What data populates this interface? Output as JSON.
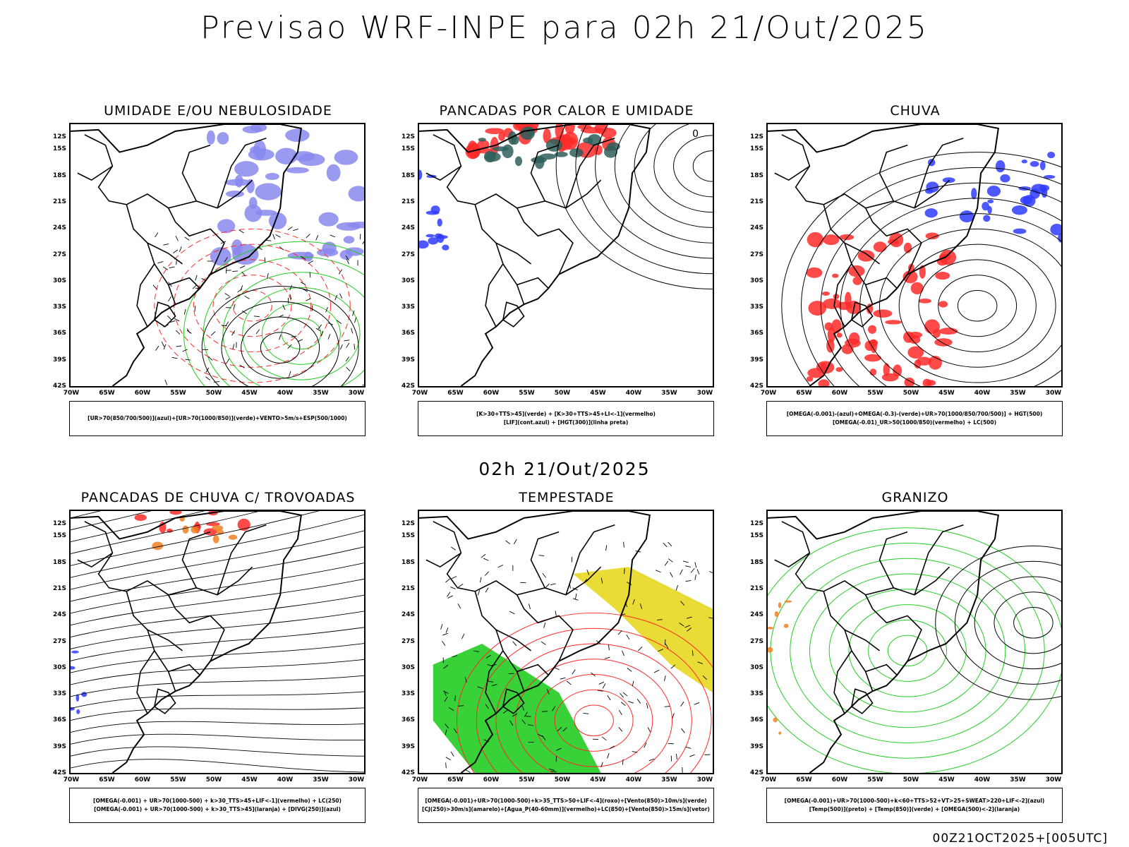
{
  "title": "Previsao WRF-INPE  para 02h 21/Out/2025",
  "subtitle": "02h 21/Out/2025",
  "footer": "00Z21OCT2025+[005UTC]",
  "lat_labels": [
    "12S",
    "15S",
    "18S",
    "21S",
    "24S",
    "27S",
    "30S",
    "33S",
    "36S",
    "39S",
    "42S"
  ],
  "lon_labels": [
    "70W",
    "65W",
    "60W",
    "55W",
    "50W",
    "45W",
    "40W",
    "35W",
    "30W"
  ],
  "colors": {
    "blue": "#2e3cff",
    "green": "#22cc22",
    "red": "#ff2a2a",
    "orange": "#f08020",
    "yellow": "#e8d820",
    "teal": "#2f5f5a",
    "purple": "#8888ee",
    "black": "#000000"
  },
  "panels": [
    {
      "title": "UMIDADE E/OU NEBULOSIDADE",
      "legend": [
        "[UR>70(850/700/500)](azul)+[UR>70(1000/850)](verde)+VENTO>5m/s+ESP(500/1000)"
      ],
      "corner": ""
    },
    {
      "title": "PANCADAS POR CALOR E UMIDADE",
      "legend": [
        "[K>30+TTS>45](verde) + [K>30+TTS>45+LI<-1](vermelho)",
        "[LIF](cont.azul) + [HGT(300)](linha preta)"
      ],
      "corner": "0"
    },
    {
      "title": "CHUVA",
      "legend": [
        "[OMEGA(-0.001)-(azul)+OMEGA(-0.3)-(verde)+UR>70(1000/850/700/500)] + HGT(500)",
        "[OMEGA(-0.01)_UR>50(1000/850)(vermelho) + LC(500)"
      ],
      "corner": ""
    },
    {
      "title": "PANCADAS DE CHUVA C/ TROVOADAS",
      "legend": [
        "[OMEGA(-0.001) + UR>70(1000-500) + k>30_TTS>45+LIF<-1](vermelho) + LC(250)",
        "[OMEGA(-0.001) + UR>70(1000-500) + k>30_TTS>45](laranja) + [DIVG(250)](azul)"
      ],
      "corner": ""
    },
    {
      "title": "TEMPESTADE",
      "legend": [
        "[OMEGA(-0.001)+UR>70(1000-500)+k>35_TTS>50+LIF<-4](roxo)+[Vento(850)>10m/s](verde)",
        "[CJ(250)>30m/s](amarelo)+[Agua_P(40-60mm)](vermelho)+LC(850)+[Vento(850)>15m/s](vetor)"
      ],
      "corner": ""
    },
    {
      "title": "GRANIZO",
      "legend": [
        "[OMEGA(-0.001)+UR>70(1000-500)+k<60+TTS>52+VT>25+SWEAT>220+LIF<-2](azul)",
        "[Temp(500)](preto) + [Temp(850)](verde) + [OMEGA(500)<-2](laranja)"
      ],
      "corner": ""
    }
  ]
}
